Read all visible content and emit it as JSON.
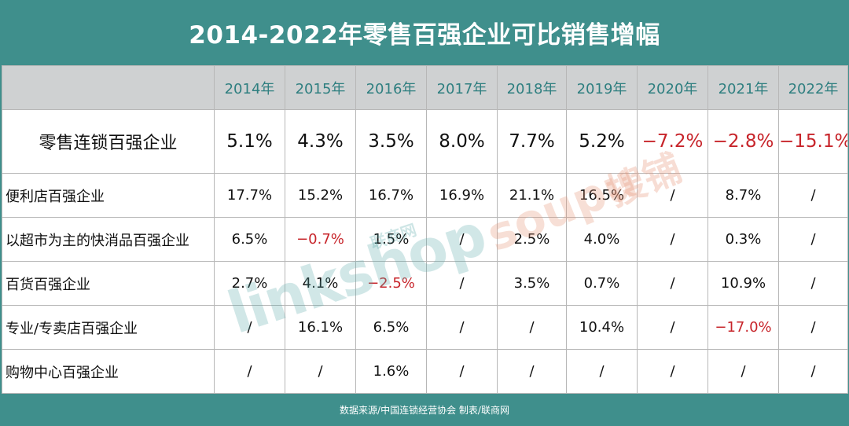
{
  "title": "2014-2022年零售百强企业可比销售增幅",
  "footer": "数据来源/中国连锁经营协会 制表/联商网",
  "watermarks": {
    "linkshop": "linkshop",
    "linkshop_cn": "联商网",
    "soupu": "soupu",
    "soupu_cn": "搜铺"
  },
  "colors": {
    "band": "#3f8f8c",
    "header_bg": "#cfd1d2",
    "header_text": "#2f7f80",
    "negative": "#c7242a"
  },
  "chart_data": {
    "type": "table",
    "title": "2014-2022年零售百强企业可比销售增幅",
    "columns": [
      "2014年",
      "2015年",
      "2016年",
      "2017年",
      "2018年",
      "2019年",
      "2020年",
      "2021年",
      "2022年"
    ],
    "rows": [
      {
        "label": "零售连锁百强企业",
        "values": [
          "5.1%",
          "4.3%",
          "3.5%",
          "8.0%",
          "7.7%",
          "5.2%",
          "−7.2%",
          "−2.8%",
          "−15.1%"
        ]
      },
      {
        "label": "便利店百强企业",
        "values": [
          "17.7%",
          "15.2%",
          "16.7%",
          "16.9%",
          "21.1%",
          "16.5%",
          "/",
          "8.7%",
          "/"
        ]
      },
      {
        "label": "以超市为主的快消品百强企业",
        "values": [
          "6.5%",
          "−0.7%",
          "1.5%",
          "/",
          "2.5%",
          "4.0%",
          "/",
          "0.3%",
          "/"
        ]
      },
      {
        "label": "百货百强企业",
        "values": [
          "2.7%",
          "4.1%",
          "−2.5%",
          "/",
          "3.5%",
          "0.7%",
          "/",
          "10.9%",
          "/"
        ]
      },
      {
        "label": "专业/专卖店百强企业",
        "values": [
          "/",
          "16.1%",
          "6.5%",
          "/",
          "/",
          "10.4%",
          "/",
          "−17.0%",
          "/"
        ]
      },
      {
        "label": "购物中心百强企业",
        "values": [
          "/",
          "/",
          "1.6%",
          "/",
          "/",
          "/",
          "/",
          "/",
          "/"
        ]
      }
    ]
  }
}
